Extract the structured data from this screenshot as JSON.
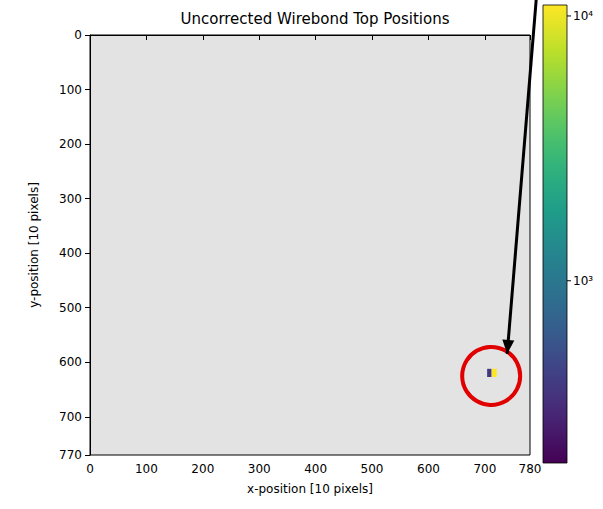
{
  "chart_data": {
    "type": "heatmap",
    "title": "Uncorrected Wirebond Top Positions",
    "xlabel": "x-position [10 pixels]",
    "ylabel": "y-position [10 pixels]",
    "xlim": [
      0,
      780
    ],
    "ylim": [
      770,
      0
    ],
    "xticks": [
      0,
      100,
      200,
      300,
      400,
      500,
      600,
      700
    ],
    "yticks": [
      0,
      100,
      200,
      300,
      400,
      500,
      600,
      700
    ],
    "grid": false,
    "cells": [
      {
        "x": [
          704,
          712
        ],
        "y": [
          612,
          627
        ],
        "value": 400
      },
      {
        "x": [
          712,
          721
        ],
        "y": [
          612,
          627
        ],
        "value": 11000
      }
    ],
    "colorbar": {
      "range": [
        205,
        11000
      ],
      "log": true,
      "ticks": [
        {
          "value": 1000,
          "label": "10³"
        },
        {
          "value": 10000,
          "label": "10⁴"
        }
      ]
    }
  }
}
